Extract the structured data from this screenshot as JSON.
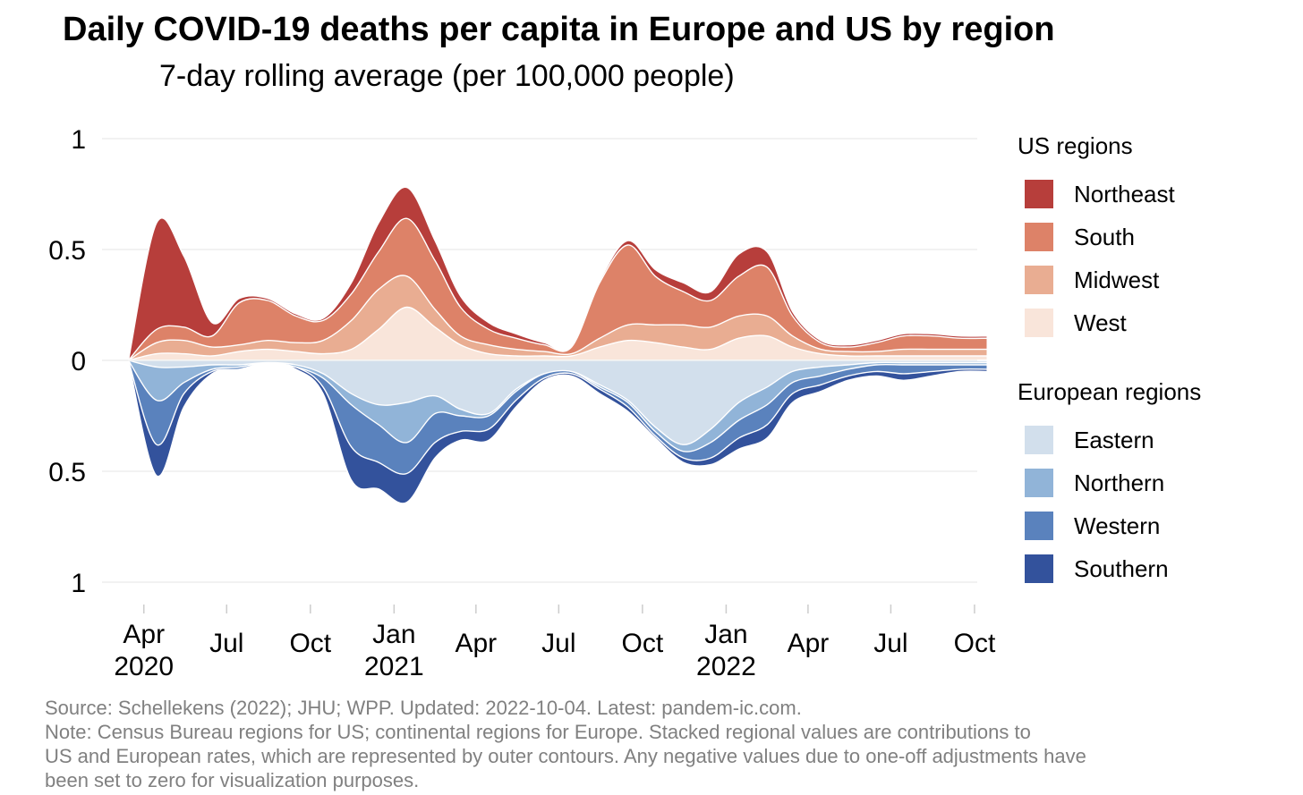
{
  "title": "Daily COVID-19 deaths per capita in Europe and US by region",
  "subtitle": "7-day rolling average (per 100,000 people)",
  "source_lines": [
    "Source: Schellekens (2022); JHU; WPP. Updated: 2022-10-04. Latest: pandem-ic.com.",
    "Note: Census Bureau regions for US; continental regions for Europe. Stacked regional values are contributions to",
    "US and European rates, which are represented by outer contours. Any negative values due to one-off adjustments have",
    "been set to zero for visualization purposes."
  ],
  "legend": {
    "us_title": "US regions",
    "eu_title": "European regions"
  },
  "chart_data": {
    "type": "area",
    "stacked": true,
    "mirrored": true,
    "grid": true,
    "legend_position": "right",
    "x_start": "2020-03",
    "x_end": "2022-10",
    "xlim": [
      "2020-02-15",
      "2022-10-04"
    ],
    "ylim": [
      -1,
      1
    ],
    "y_ticks": [
      {
        "value": 1,
        "label": "1"
      },
      {
        "value": 0.5,
        "label": "0.5"
      },
      {
        "value": 0,
        "label": "0"
      },
      {
        "value": -0.5,
        "label": "0.5"
      },
      {
        "value": -1,
        "label": "1"
      }
    ],
    "x_ticks": [
      {
        "date": "2020-04-01",
        "line1": "Apr",
        "line2": "2020"
      },
      {
        "date": "2020-07-01",
        "line1": "Jul",
        "line2": ""
      },
      {
        "date": "2020-10-01",
        "line1": "Oct",
        "line2": ""
      },
      {
        "date": "2021-01-01",
        "line1": "Jan",
        "line2": "2021"
      },
      {
        "date": "2021-04-01",
        "line1": "Apr",
        "line2": ""
      },
      {
        "date": "2021-07-01",
        "line1": "Jul",
        "line2": ""
      },
      {
        "date": "2021-10-01",
        "line1": "Oct",
        "line2": ""
      },
      {
        "date": "2022-01-01",
        "line1": "Jan",
        "line2": "2022"
      },
      {
        "date": "2022-04-01",
        "line1": "Apr",
        "line2": ""
      },
      {
        "date": "2022-07-01",
        "line1": "Jul",
        "line2": ""
      },
      {
        "date": "2022-10-01",
        "line1": "Oct",
        "line2": ""
      }
    ],
    "x": [
      "2020-03",
      "2020-04",
      "2020-05",
      "2020-06",
      "2020-07",
      "2020-08",
      "2020-09",
      "2020-10",
      "2020-11",
      "2020-12",
      "2021-01",
      "2021-02",
      "2021-03",
      "2021-04",
      "2021-05",
      "2021-06",
      "2021-07",
      "2021-08",
      "2021-09",
      "2021-10",
      "2021-11",
      "2021-12",
      "2022-01",
      "2022-02",
      "2022-03",
      "2022-04",
      "2022-05",
      "2022-06",
      "2022-07",
      "2022-08",
      "2022-09",
      "2022-10"
    ],
    "us_series": [
      {
        "name": "West",
        "color": "#f9e5da",
        "values": [
          0.0,
          0.03,
          0.03,
          0.02,
          0.04,
          0.05,
          0.04,
          0.03,
          0.05,
          0.14,
          0.24,
          0.15,
          0.07,
          0.03,
          0.02,
          0.02,
          0.02,
          0.06,
          0.09,
          0.08,
          0.06,
          0.05,
          0.1,
          0.11,
          0.06,
          0.03,
          0.02,
          0.02,
          0.02,
          0.02,
          0.02,
          0.02
        ]
      },
      {
        "name": "Midwest",
        "color": "#e9ad92",
        "values": [
          0.0,
          0.05,
          0.06,
          0.04,
          0.03,
          0.04,
          0.04,
          0.06,
          0.13,
          0.18,
          0.14,
          0.08,
          0.04,
          0.04,
          0.03,
          0.02,
          0.01,
          0.04,
          0.07,
          0.08,
          0.1,
          0.1,
          0.1,
          0.09,
          0.05,
          0.02,
          0.02,
          0.02,
          0.03,
          0.03,
          0.03,
          0.03
        ]
      },
      {
        "name": "South",
        "color": "#dd8268",
        "values": [
          0.0,
          0.06,
          0.06,
          0.05,
          0.19,
          0.18,
          0.12,
          0.09,
          0.12,
          0.17,
          0.26,
          0.22,
          0.13,
          0.07,
          0.05,
          0.03,
          0.03,
          0.25,
          0.36,
          0.22,
          0.15,
          0.12,
          0.18,
          0.22,
          0.09,
          0.03,
          0.02,
          0.04,
          0.06,
          0.06,
          0.05,
          0.05
        ]
      },
      {
        "name": "Northeast",
        "color": "#b73e3b",
        "values": [
          0.0,
          0.48,
          0.32,
          0.06,
          0.02,
          0.01,
          0.01,
          0.01,
          0.05,
          0.13,
          0.14,
          0.09,
          0.05,
          0.03,
          0.02,
          0.01,
          0.0,
          0.01,
          0.02,
          0.03,
          0.04,
          0.04,
          0.1,
          0.07,
          0.02,
          0.01,
          0.01,
          0.01,
          0.01,
          0.01,
          0.01,
          0.01
        ]
      }
    ],
    "eu_series": [
      {
        "name": "Eastern",
        "color": "#d2dfec",
        "values": [
          0.0,
          0.03,
          0.03,
          0.02,
          0.02,
          0.01,
          0.02,
          0.06,
          0.15,
          0.2,
          0.19,
          0.16,
          0.22,
          0.24,
          0.13,
          0.06,
          0.05,
          0.11,
          0.18,
          0.3,
          0.38,
          0.31,
          0.19,
          0.12,
          0.05,
          0.03,
          0.02,
          0.01,
          0.01,
          0.01,
          0.01,
          0.01
        ]
      },
      {
        "name": "Northern",
        "color": "#91b4d8",
        "values": [
          0.0,
          0.15,
          0.07,
          0.02,
          0.01,
          0.0,
          0.01,
          0.02,
          0.05,
          0.09,
          0.18,
          0.08,
          0.03,
          0.01,
          0.01,
          0.0,
          0.0,
          0.01,
          0.01,
          0.02,
          0.03,
          0.06,
          0.08,
          0.08,
          0.05,
          0.04,
          0.02,
          0.01,
          0.01,
          0.01,
          0.01,
          0.01
        ]
      },
      {
        "name": "Western",
        "color": "#5a82bd",
        "values": [
          0.0,
          0.2,
          0.05,
          0.01,
          0.01,
          0.0,
          0.0,
          0.04,
          0.19,
          0.17,
          0.14,
          0.13,
          0.07,
          0.06,
          0.04,
          0.02,
          0.01,
          0.01,
          0.02,
          0.02,
          0.03,
          0.07,
          0.08,
          0.09,
          0.05,
          0.04,
          0.03,
          0.03,
          0.04,
          0.03,
          0.02,
          0.02
        ]
      },
      {
        "name": "Southern",
        "color": "#33529c",
        "values": [
          0.0,
          0.14,
          0.06,
          0.01,
          0.0,
          0.0,
          0.01,
          0.03,
          0.15,
          0.12,
          0.13,
          0.07,
          0.04,
          0.05,
          0.03,
          0.01,
          0.01,
          0.02,
          0.02,
          0.01,
          0.02,
          0.03,
          0.05,
          0.06,
          0.04,
          0.03,
          0.02,
          0.02,
          0.03,
          0.02,
          0.01,
          0.01
        ]
      }
    ]
  }
}
